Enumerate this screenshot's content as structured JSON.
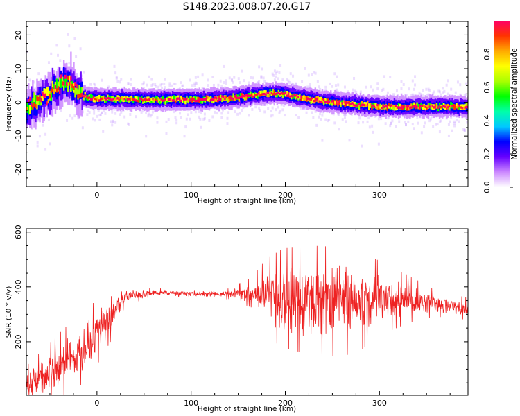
{
  "figure": {
    "title": "S148.2023.008.07.20.G17"
  },
  "chart_data": [
    {
      "type": "heatmap",
      "xlabel": "Height of straight line (km)",
      "ylabel": "Frequency (Hz)",
      "xlim": [
        -75,
        394
      ],
      "ylim": [
        -25,
        24
      ],
      "xticks": [
        0,
        100,
        200,
        300
      ],
      "yticks": [
        -20,
        -10,
        0,
        10,
        20
      ],
      "grid": false,
      "ridge": {
        "x": [
          -72,
          -65,
          -55,
          -45,
          -38,
          -30,
          -22,
          -12,
          0,
          20,
          50,
          80,
          100,
          120,
          140,
          155,
          170,
          185,
          195,
          210,
          225,
          240,
          260,
          280,
          300,
          320,
          350,
          394
        ],
        "y": [
          -2,
          0,
          2,
          4,
          5.5,
          6,
          3,
          1.5,
          1,
          1,
          0.8,
          0.8,
          0.8,
          0.9,
          1.2,
          1.8,
          2.3,
          2.7,
          2.6,
          1.8,
          1.0,
          0.3,
          -0.3,
          -0.8,
          -1.2,
          -1.3,
          -1.3,
          -1.3
        ]
      },
      "colorbar": {
        "label": "Normalized spectral amplitude",
        "ticks": [
          "0.0",
          "0.2",
          "0.4",
          "0.6",
          "0.8"
        ],
        "range": [
          0,
          1
        ],
        "colormap": [
          "#ffffff",
          "#cc88ff",
          "#6600ff",
          "#0000ff",
          "#00c8ff",
          "#00ffaa",
          "#00ff00",
          "#aaff00",
          "#ffff00",
          "#ffaa00",
          "#ff3300",
          "#ff0066"
        ]
      }
    },
    {
      "type": "line",
      "xlabel": "Height of straight line (km)",
      "ylabel": "SNR (10 * v/v)",
      "xlim": [
        -75,
        394
      ],
      "ylim": [
        5,
        612
      ],
      "xticks": [
        0,
        100,
        200,
        300
      ],
      "yticks": [
        200,
        400,
        600
      ],
      "grid": false,
      "color": "#ee2222",
      "envelope": {
        "x": [
          -75,
          -55,
          -35,
          -15,
          0,
          15,
          30,
          60,
          100,
          140,
          165,
          180,
          200,
          230,
          260,
          280,
          300,
          330,
          360,
          394
        ],
        "mean": [
          40,
          75,
          120,
          175,
          235,
          300,
          365,
          380,
          375,
          375,
          380,
          360,
          360,
          350,
          345,
          345,
          360,
          355,
          340,
          320
        ],
        "amp": [
          45,
          65,
          80,
          80,
          75,
          60,
          20,
          10,
          8,
          12,
          35,
          90,
          115,
          125,
          125,
          110,
          85,
          55,
          30,
          25
        ]
      }
    }
  ]
}
